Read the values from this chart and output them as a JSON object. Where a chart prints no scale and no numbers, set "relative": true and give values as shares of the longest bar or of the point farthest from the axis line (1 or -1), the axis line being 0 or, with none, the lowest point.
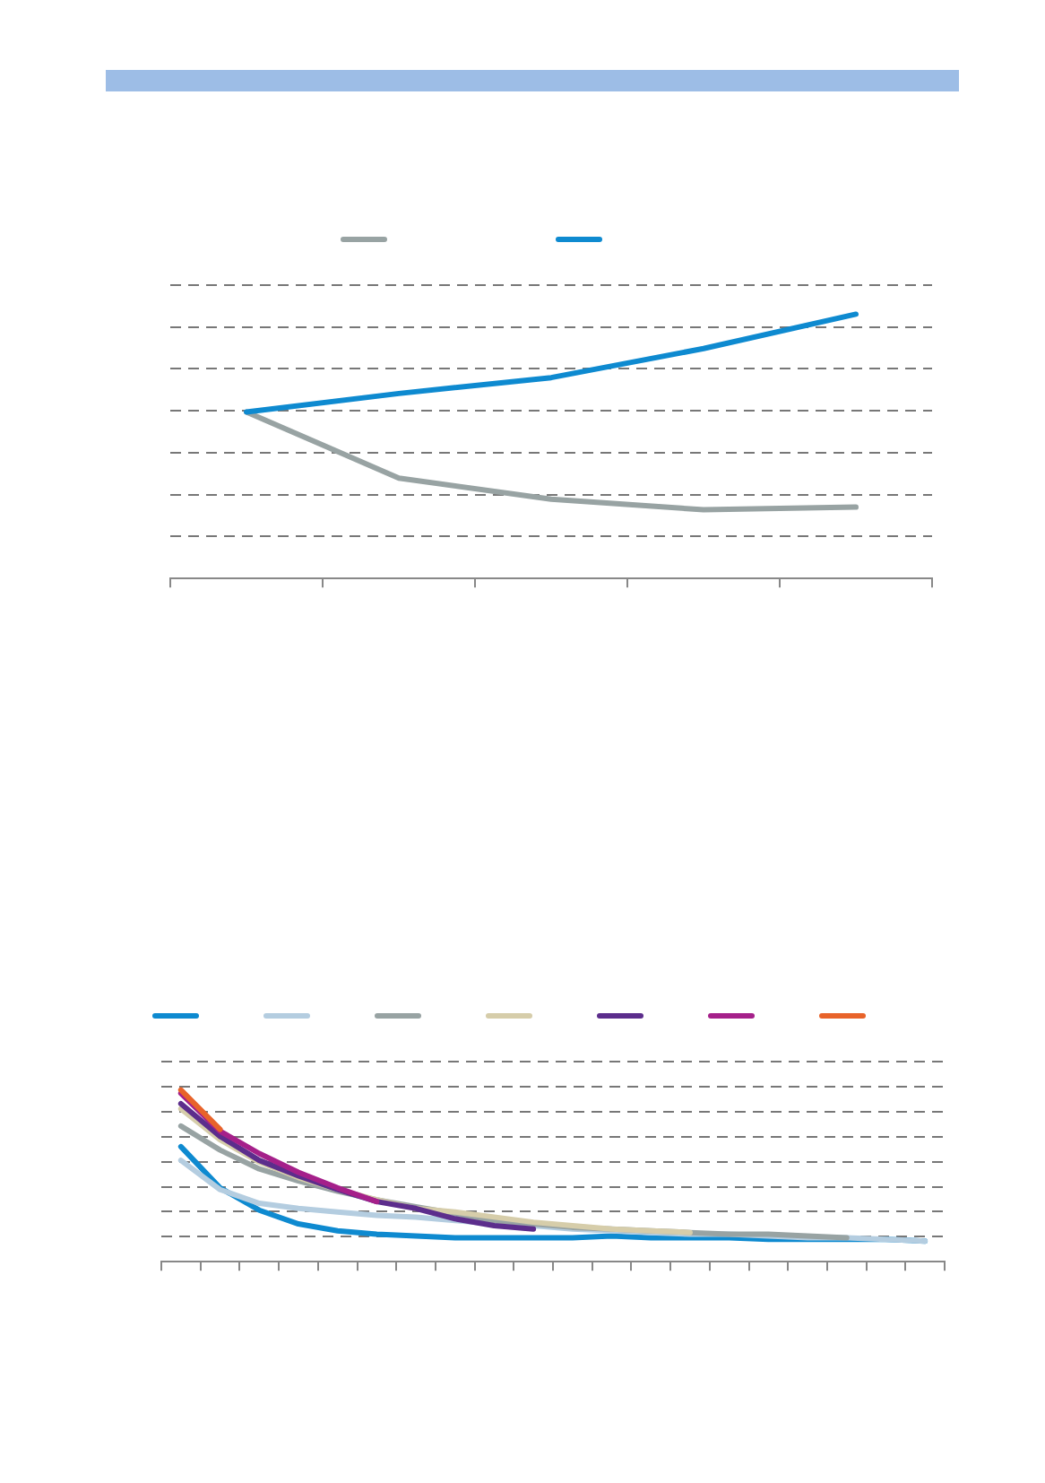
{
  "chart_data": [
    {
      "type": "line",
      "relative": true,
      "categories": [
        null,
        null,
        null,
        null,
        null
      ],
      "grid": "y",
      "marker": "none",
      "line_style": "solid",
      "series": [
        {
          "color": "#98a3a3",
          "values": [
            0.63,
            0.38,
            0.3,
            0.26,
            0.27
          ]
        },
        {
          "color": "#0e8ad0",
          "values": [
            0.63,
            0.7,
            0.76,
            0.87,
            1
          ]
        }
      ]
    },
    {
      "type": "line",
      "relative": true,
      "categories": [
        null,
        null,
        null,
        null,
        null,
        null,
        null,
        null,
        null,
        null,
        null,
        null,
        null,
        null,
        null,
        null,
        null,
        null,
        null,
        null
      ],
      "grid": "y",
      "marker": "none",
      "line_style": "solid",
      "series": [
        {
          "color": "#0e8ad0",
          "values": [
            0.67,
            0.43,
            0.3,
            0.22,
            0.18,
            0.16,
            0.15,
            0.14,
            0.14,
            0.14,
            0.14,
            0.15,
            0.14,
            0.14,
            0.14,
            0.13,
            0.13,
            0.13,
            0.13,
            0.12
          ]
        },
        {
          "color": "#b4cde0",
          "values": [
            0.59,
            0.42,
            0.34,
            0.31,
            0.29,
            0.27,
            0.26,
            0.24,
            0.22,
            0.21,
            0.19,
            0.18,
            0.17,
            0.16,
            0.16,
            0.15,
            0.14,
            0.14,
            0.13,
            0.12
          ]
        },
        {
          "color": "#98a3a3",
          "values": [
            0.79,
            0.65,
            0.54,
            0.47,
            0.41,
            0.36,
            0.32,
            0.28,
            0.24,
            0.22,
            0.2,
            0.19,
            0.18,
            0.17,
            0.16,
            0.16,
            0.15,
            0.14,
            null,
            null
          ]
        },
        {
          "color": "#d6cdaa",
          "values": [
            0.89,
            0.71,
            0.58,
            0.49,
            0.42,
            0.36,
            0.31,
            0.29,
            0.26,
            0.23,
            0.21,
            0.19,
            0.18,
            0.17,
            null,
            null,
            null,
            null,
            null,
            null
          ]
        },
        {
          "color": "#5c2d8c",
          "values": [
            0.92,
            0.73,
            0.59,
            0.5,
            0.42,
            0.35,
            0.31,
            0.25,
            0.21,
            0.19,
            null,
            null,
            null,
            null,
            null,
            null,
            null,
            null,
            null,
            null
          ]
        },
        {
          "color": "#a5208a",
          "values": [
            0.98,
            0.76,
            0.63,
            0.52,
            0.43,
            0.35,
            null,
            null,
            null,
            null,
            null,
            null,
            null,
            null,
            null,
            null,
            null,
            null,
            null,
            null
          ]
        },
        {
          "color": "#e8632a",
          "values": [
            1,
            0.77,
            null,
            null,
            null,
            null,
            null,
            null,
            null,
            null,
            null,
            null,
            null,
            null,
            null,
            null,
            null,
            null,
            null,
            null
          ]
        }
      ]
    }
  ]
}
